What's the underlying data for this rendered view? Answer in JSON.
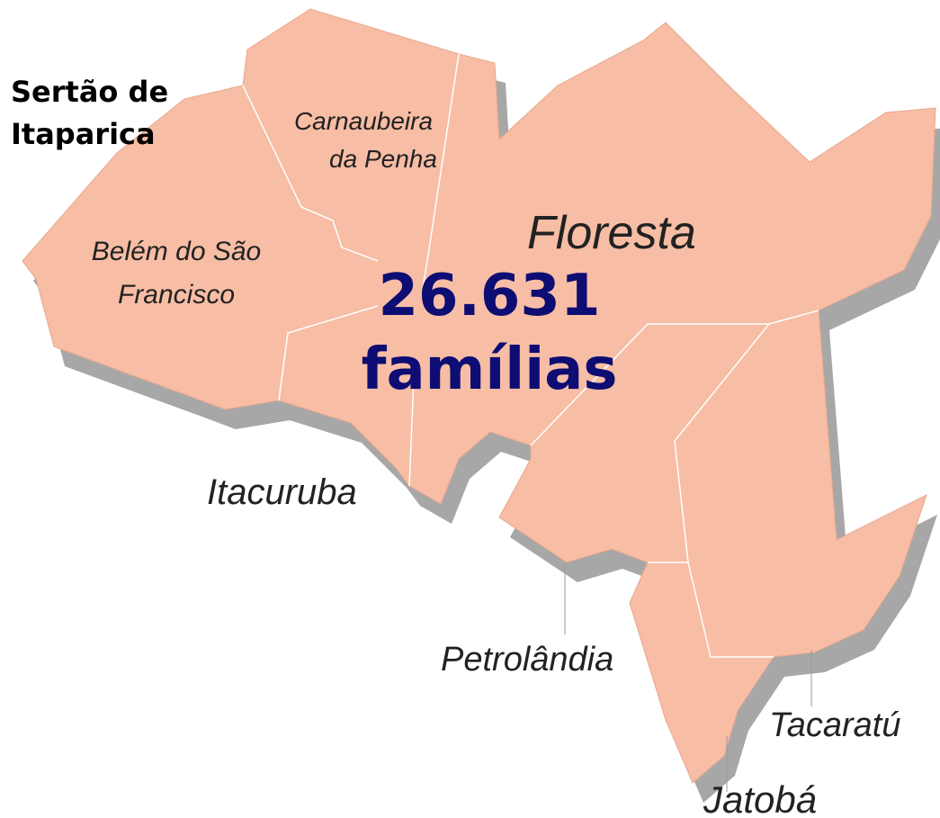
{
  "region": {
    "title_lines": [
      "Sertão de",
      "Itaparica"
    ]
  },
  "total": {
    "lines": [
      "26.631",
      "famílias"
    ]
  },
  "municipalities": [
    {
      "label_lines": [
        "Carnaubeira",
        "da Penha"
      ]
    },
    {
      "label_lines": [
        "Belém do São",
        "Francisco"
      ]
    },
    {
      "label_lines": [
        "Floresta"
      ]
    },
    {
      "label_lines": [
        "Itacuruba"
      ]
    },
    {
      "label_lines": [
        "Petrolândia"
      ]
    },
    {
      "label_lines": [
        "Tacaratú"
      ]
    },
    {
      "label_lines": [
        "Jatobá"
      ]
    }
  ]
}
